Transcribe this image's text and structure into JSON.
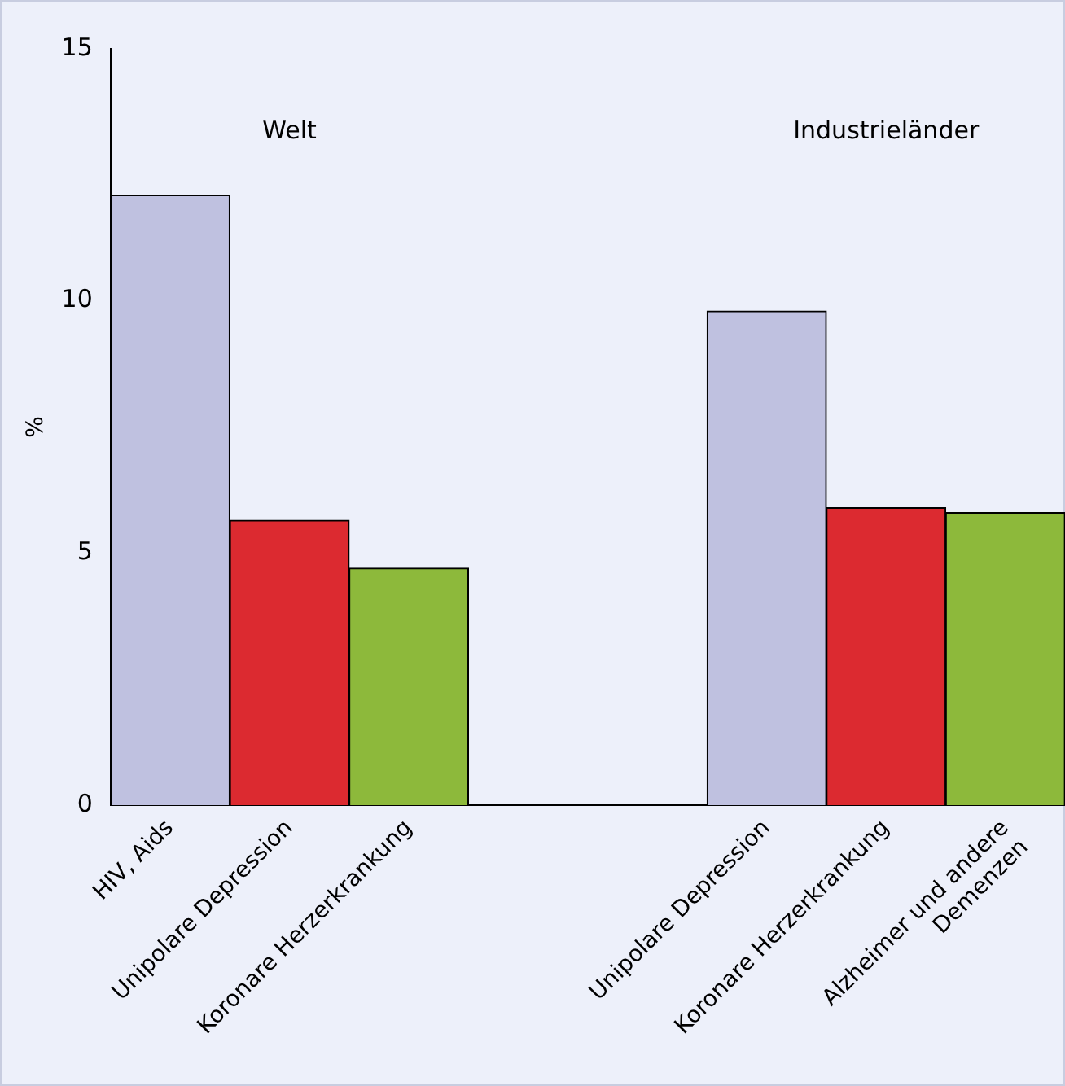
{
  "chart_data": {
    "type": "bar",
    "ylabel": "%",
    "categories": [
      "HIV, Aids",
      "Unipolare Depression",
      "Koronare Herzerkrankung",
      null,
      null,
      "Unipolare Depression",
      "Koronare Herzerkrankung",
      "Alzheimer und andere Demenzen"
    ],
    "values": [
      12.1,
      5.65,
      4.7,
      null,
      null,
      9.8,
      5.9,
      5.8
    ],
    "colors": [
      "#bfc1e0",
      "#dc2a30",
      "#8db93b",
      null,
      null,
      "#bfc1e0",
      "#dc2a30",
      "#8db93b"
    ],
    "annotations": [
      "Welt",
      "Industrieländer"
    ],
    "ylim": [
      0,
      15
    ],
    "yticks": [
      0,
      5,
      10,
      15
    ],
    "grid": false,
    "legend": false
  }
}
